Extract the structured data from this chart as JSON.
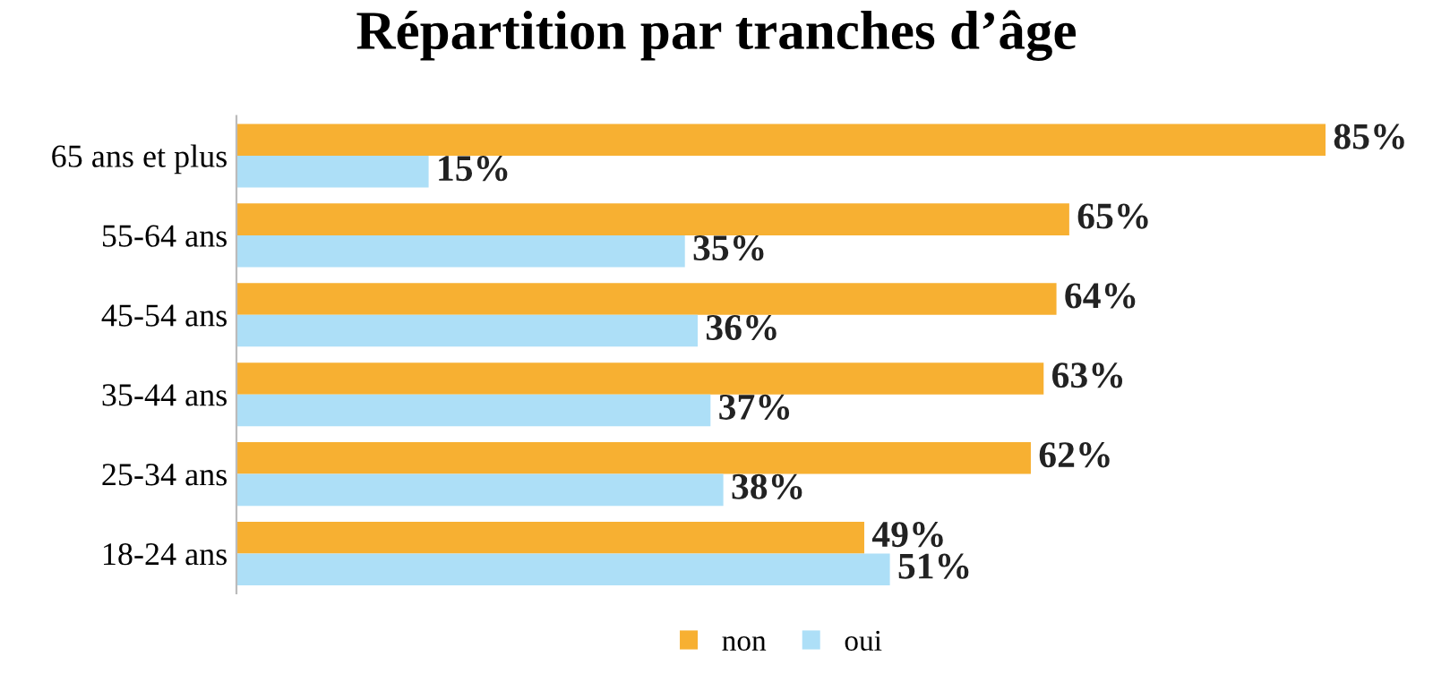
{
  "chart_data": {
    "type": "bar",
    "orientation": "horizontal",
    "title": "Répartition par tranches d’âge",
    "categories": [
      "65 ans et plus",
      "55-64 ans",
      "45-54 ans",
      "35-44 ans",
      "25-34 ans",
      "18-24 ans"
    ],
    "series": [
      {
        "name": "non",
        "color": "#f7b032",
        "values": [
          85,
          65,
          64,
          63,
          62,
          49
        ],
        "value_labels": [
          "85%",
          "65%",
          "64%",
          "63%",
          "62%",
          "49%"
        ]
      },
      {
        "name": "oui",
        "color": "#addff7",
        "values": [
          15,
          35,
          36,
          37,
          38,
          51
        ],
        "value_labels": [
          "15%",
          "35%",
          "36%",
          "37%",
          "38%",
          "51%"
        ]
      }
    ],
    "legend": "bottom",
    "grid": false,
    "tick_labels": "y"
  }
}
